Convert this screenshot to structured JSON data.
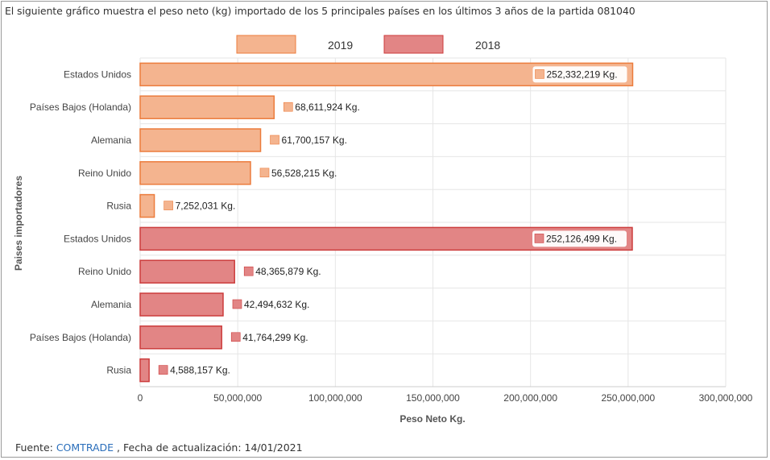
{
  "title": "El siguiente gráfico muestra el peso neto (kg) importado de los 5 principales países en los últimos 3 años de la partida 081040",
  "footer": {
    "prefix": "Fuente: ",
    "link": "COMTRADE",
    "suffix": "   , Fecha de actualización: 14/01/2021"
  },
  "chart_data": {
    "type": "bar",
    "orientation": "horizontal",
    "xlabel": "Peso Neto Kg.",
    "ylabel": "Paises importadores",
    "xlim": [
      0,
      300000000
    ],
    "xticks": [
      0,
      50000000,
      100000000,
      150000000,
      200000000,
      250000000,
      300000000
    ],
    "xtick_labels": [
      "0",
      "50,000,000",
      "100,000,000",
      "150,000,000",
      "200,000,000",
      "250,000,000",
      "300,000,000"
    ],
    "grid": true,
    "legend_position": "top-center",
    "series": [
      {
        "name": "2019",
        "color": "#f4b48f",
        "border": "#ec7c3c",
        "categories": [
          "Estados Unidos",
          "Países Bajos (Holanda)",
          "Alemania",
          "Reino Unido",
          "Rusia"
        ],
        "values": [
          252332219,
          68611924,
          61700157,
          56528215,
          7252031
        ],
        "labels": [
          "252,332,219 Kg.",
          "68,611,924 Kg.",
          "61,700,157 Kg.",
          "56,528,215 Kg.",
          "7,252,031 Kg."
        ]
      },
      {
        "name": "2018",
        "color": "#e28585",
        "border": "#cc3c3c",
        "categories": [
          "Estados Unidos",
          "Reino Unido",
          "Alemania",
          "Países Bajos (Holanda)",
          "Rusia"
        ],
        "values": [
          252126499,
          48365879,
          42494632,
          41764299,
          4588157
        ],
        "labels": [
          "252,126,499 Kg.",
          "48,365,879 Kg.",
          "42,494,632 Kg.",
          "41,764,299 Kg.",
          "4,588,157 Kg."
        ]
      }
    ]
  }
}
